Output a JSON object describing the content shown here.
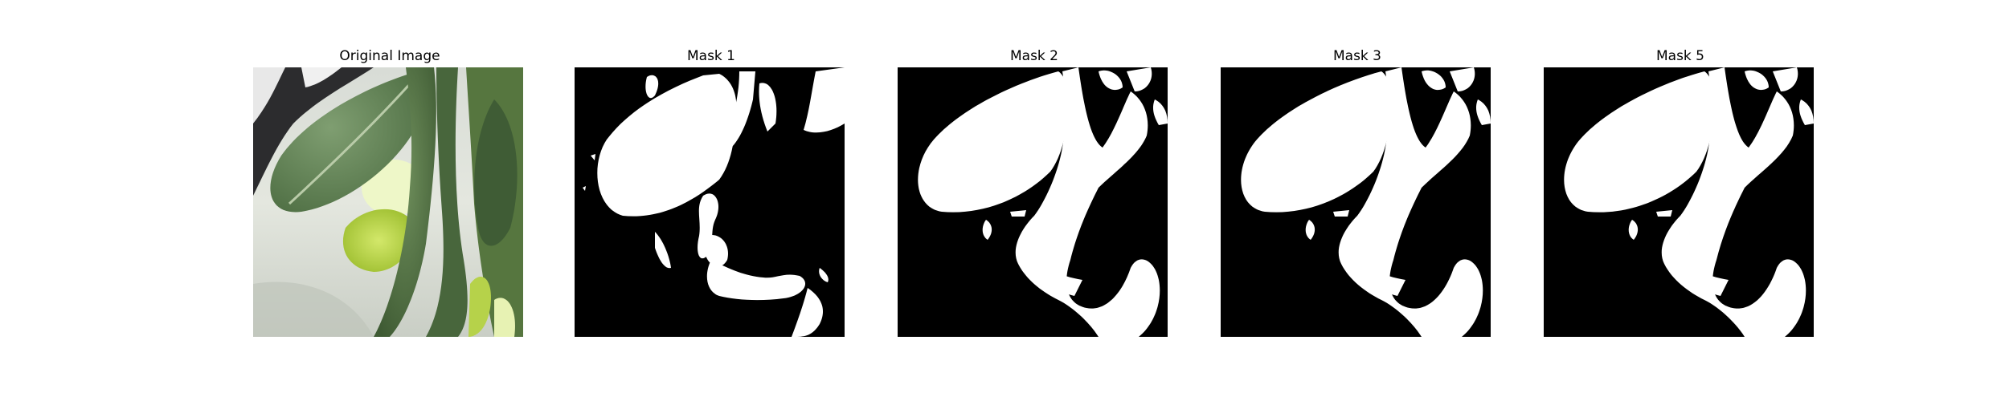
{
  "panels": [
    {
      "title": "Original Image",
      "kind": "photo"
    },
    {
      "title": "Mask 1",
      "kind": "mask"
    },
    {
      "title": "Mask 2",
      "kind": "mask"
    },
    {
      "title": "Mask 3",
      "kind": "mask"
    },
    {
      "title": "Mask 5",
      "kind": "mask"
    }
  ],
  "colors": {
    "mask_fg": "#ffffff",
    "mask_bg": "#000000"
  }
}
